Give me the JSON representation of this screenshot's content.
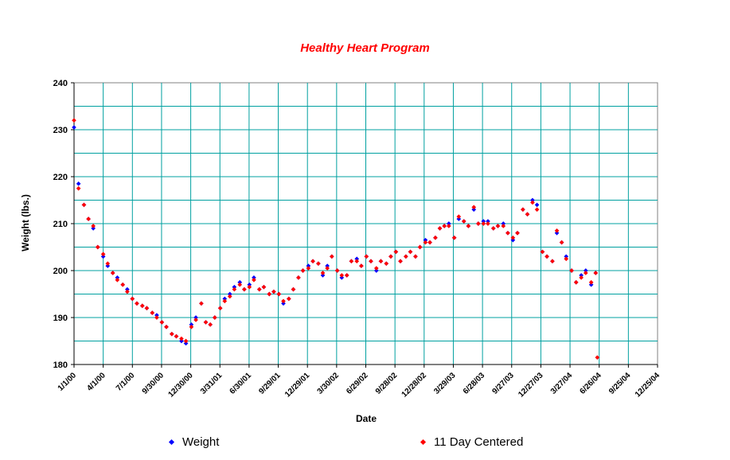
{
  "chart_data": {
    "type": "scatter",
    "title": "Healthy Heart Program",
    "xlabel": "Date",
    "ylabel": "Weight (lbs.)",
    "ylim": [
      180,
      240
    ],
    "xlim": [
      "2000-01-01",
      "2004-12-25"
    ],
    "yticks": [
      "180",
      "190",
      "200",
      "210",
      "220",
      "230",
      "240"
    ],
    "xticks": [
      "1/1/00",
      "4/1/00",
      "7/1/00",
      "9/30/00",
      "12/30/00",
      "3/31/01",
      "6/30/01",
      "9/29/01",
      "12/29/01",
      "3/30/02",
      "6/29/02",
      "9/28/02",
      "12/28/02",
      "3/29/03",
      "6/28/03",
      "9/27/03",
      "12/27/03",
      "3/27/04",
      "6/26/04",
      "9/25/04",
      "12/25/04"
    ],
    "grid": true,
    "legend_position": "bottom",
    "series": [
      {
        "name": "Weight",
        "color": "#0000ff",
        "marker": "diamond",
        "x": [
          "2000-01-01",
          "2000-01-15",
          "2000-02-01",
          "2000-02-15",
          "2000-03-01",
          "2000-03-15",
          "2000-04-01",
          "2000-04-15",
          "2000-05-01",
          "2000-05-15",
          "2000-06-01",
          "2000-06-15",
          "2000-07-01",
          "2000-07-15",
          "2000-08-01",
          "2000-08-15",
          "2000-09-01",
          "2000-09-15",
          "2000-10-01",
          "2000-10-15",
          "2000-11-01",
          "2000-11-15",
          "2000-12-01",
          "2000-12-15",
          "2001-01-01",
          "2001-01-15",
          "2001-02-01",
          "2001-02-15",
          "2001-03-01",
          "2001-03-15",
          "2001-04-01",
          "2001-04-15",
          "2001-05-01",
          "2001-05-15",
          "2001-06-01",
          "2001-06-15",
          "2001-07-01",
          "2001-07-15",
          "2001-08-01",
          "2001-08-15",
          "2001-09-01",
          "2001-09-15",
          "2001-10-01",
          "2001-10-15",
          "2001-11-01",
          "2001-11-15",
          "2001-12-01",
          "2001-12-15",
          "2002-01-01",
          "2002-01-15",
          "2002-02-01",
          "2002-02-15",
          "2002-03-01",
          "2002-03-15",
          "2002-04-01",
          "2002-04-15",
          "2002-05-01",
          "2002-05-15",
          "2002-06-01",
          "2002-06-15",
          "2002-07-01",
          "2002-07-15",
          "2002-08-01",
          "2002-08-15",
          "2002-09-01",
          "2002-09-15",
          "2002-10-01",
          "2002-10-15",
          "2002-11-01",
          "2002-11-15",
          "2002-12-01",
          "2002-12-15",
          "2003-01-01",
          "2003-01-15",
          "2003-02-01",
          "2003-02-15",
          "2003-03-01",
          "2003-03-15",
          "2003-04-01",
          "2003-04-15",
          "2003-05-01",
          "2003-05-15",
          "2003-06-01",
          "2003-06-15",
          "2003-07-01",
          "2003-07-15",
          "2003-08-01",
          "2003-08-15",
          "2003-09-01",
          "2003-09-15",
          "2003-10-01",
          "2003-10-15",
          "2003-11-01",
          "2003-11-15",
          "2003-12-01",
          "2003-12-15",
          "2004-01-01",
          "2004-01-15",
          "2004-02-01",
          "2004-02-15",
          "2004-03-01",
          "2004-03-15",
          "2004-04-01",
          "2004-04-15",
          "2004-05-01",
          "2004-05-15",
          "2004-06-01",
          "2004-06-15"
        ],
        "y": [
          230.5,
          218.5,
          214,
          211,
          209,
          205,
          203,
          201,
          199.5,
          198.5,
          197,
          196,
          194,
          193,
          192.5,
          192,
          191,
          190.5,
          189,
          188,
          186.5,
          186,
          185,
          184.5,
          188.5,
          190,
          193,
          189,
          188.5,
          190,
          192,
          194,
          195,
          196.5,
          197.5,
          196,
          197,
          198.5,
          196,
          196.5,
          195,
          195.5,
          195,
          193,
          194,
          196,
          198.5,
          200,
          201,
          202,
          201.5,
          199,
          201,
          203,
          200,
          198.5,
          199,
          202,
          202.5,
          201,
          203,
          202,
          200,
          202,
          201.5,
          203,
          204,
          202,
          203,
          204,
          203,
          205,
          206.5,
          206,
          207,
          209,
          209.5,
          210,
          207,
          211,
          210.5,
          209.5,
          213,
          210,
          210.5,
          210.5,
          209,
          209.5,
          210,
          208,
          206.5,
          208,
          213,
          212,
          215,
          214,
          204,
          203,
          202,
          208,
          206,
          203,
          200,
          197.5,
          199,
          200,
          197,
          199.5
        ]
      },
      {
        "name": "11 Day Centered",
        "color": "#ff0000",
        "marker": "diamond",
        "x": [
          "2000-01-01",
          "2000-01-15",
          "2000-02-01",
          "2000-02-15",
          "2000-03-01",
          "2000-03-15",
          "2000-04-01",
          "2000-04-15",
          "2000-05-01",
          "2000-05-15",
          "2000-06-01",
          "2000-06-15",
          "2000-07-01",
          "2000-07-15",
          "2000-08-01",
          "2000-08-15",
          "2000-09-01",
          "2000-09-15",
          "2000-10-01",
          "2000-10-15",
          "2000-11-01",
          "2000-11-15",
          "2000-12-01",
          "2000-12-15",
          "2001-01-01",
          "2001-01-15",
          "2001-02-01",
          "2001-02-15",
          "2001-03-01",
          "2001-03-15",
          "2001-04-01",
          "2001-04-15",
          "2001-05-01",
          "2001-05-15",
          "2001-06-01",
          "2001-06-15",
          "2001-07-01",
          "2001-07-15",
          "2001-08-01",
          "2001-08-15",
          "2001-09-01",
          "2001-09-15",
          "2001-10-01",
          "2001-10-15",
          "2001-11-01",
          "2001-11-15",
          "2001-12-01",
          "2001-12-15",
          "2002-01-01",
          "2002-01-15",
          "2002-02-01",
          "2002-02-15",
          "2002-03-01",
          "2002-03-15",
          "2002-04-01",
          "2002-04-15",
          "2002-05-01",
          "2002-05-15",
          "2002-06-01",
          "2002-06-15",
          "2002-07-01",
          "2002-07-15",
          "2002-08-01",
          "2002-08-15",
          "2002-09-01",
          "2002-09-15",
          "2002-10-01",
          "2002-10-15",
          "2002-11-01",
          "2002-11-15",
          "2002-12-01",
          "2002-12-15",
          "2003-01-01",
          "2003-01-15",
          "2003-02-01",
          "2003-02-15",
          "2003-03-01",
          "2003-03-15",
          "2003-04-01",
          "2003-04-15",
          "2003-05-01",
          "2003-05-15",
          "2003-06-01",
          "2003-06-15",
          "2003-07-01",
          "2003-07-15",
          "2003-08-01",
          "2003-08-15",
          "2003-09-01",
          "2003-09-15",
          "2003-10-01",
          "2003-10-15",
          "2003-11-01",
          "2003-11-15",
          "2003-12-01",
          "2003-12-15",
          "2004-01-01",
          "2004-01-15",
          "2004-02-01",
          "2004-02-15",
          "2004-03-01",
          "2004-03-15",
          "2004-04-01",
          "2004-04-15",
          "2004-05-01",
          "2004-05-15",
          "2004-06-01",
          "2004-06-15",
          "2004-06-20"
        ],
        "y": [
          232,
          217.5,
          214,
          211,
          209.5,
          205,
          203.5,
          201.5,
          199.5,
          198,
          197,
          195.5,
          194,
          193,
          192.5,
          192,
          191,
          190,
          189,
          188,
          186.5,
          186,
          185.5,
          185,
          188,
          189.5,
          193,
          189,
          188.5,
          190,
          192,
          193.5,
          194.5,
          196,
          197,
          196,
          196.5,
          198,
          196,
          196.5,
          195,
          195.5,
          195,
          193.5,
          194,
          196,
          198.5,
          200,
          200.5,
          202,
          201.5,
          199.5,
          200.5,
          203,
          200,
          199,
          199,
          202,
          202,
          201,
          203,
          202,
          200.5,
          202,
          201.5,
          203,
          204,
          202,
          203,
          204,
          203,
          205,
          206,
          206,
          207,
          209,
          209.5,
          209.5,
          207,
          211.5,
          210.5,
          209.5,
          213.5,
          210,
          210,
          210,
          209,
          209.5,
          209.5,
          208,
          207,
          208,
          213,
          212,
          214.5,
          213,
          204,
          203,
          202,
          208.5,
          206,
          202.5,
          200,
          197.5,
          198.5,
          199.5,
          197.5,
          199.5,
          181.5
        ]
      }
    ]
  },
  "legend": {
    "weight_label": "Weight",
    "avg_label": "11 Day Centered"
  }
}
